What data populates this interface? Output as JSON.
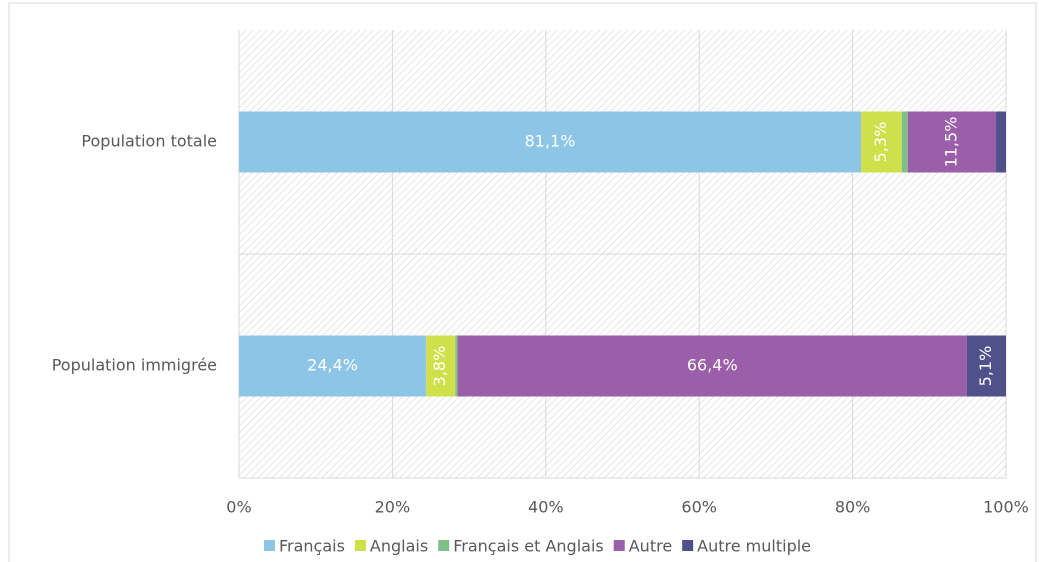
{
  "chart_data": {
    "type": "stacked_barh",
    "categories": [
      "Population totale",
      "Population immigrée"
    ],
    "series": [
      {
        "name": "Français",
        "color": "#8dc5e7",
        "values": [
          81.1,
          24.4
        ],
        "value_labels": [
          "81,1%",
          "24,4%"
        ]
      },
      {
        "name": "Anglais",
        "color": "#cfe04a",
        "values": [
          5.3,
          3.8
        ],
        "value_labels": [
          "5,3%",
          "3,8%"
        ]
      },
      {
        "name": "Français et Anglais",
        "color": "#80bf88",
        "values": [
          0.8,
          0.3
        ],
        "value_labels": [
          null,
          null
        ]
      },
      {
        "name": "Autre",
        "color": "#9b5fa9",
        "values": [
          11.5,
          66.4
        ],
        "value_labels": [
          "11,5%",
          "66,4%"
        ]
      },
      {
        "name": "Autre multiple",
        "color": "#50508a",
        "values": [
          1.3,
          5.1
        ],
        "value_labels": [
          null,
          "5,1%"
        ]
      }
    ],
    "xlim": [
      0,
      100
    ],
    "xticks": [
      {
        "value": 0,
        "label": "0%"
      },
      {
        "value": 20,
        "label": "20%"
      },
      {
        "value": 40,
        "label": "40%"
      },
      {
        "value": 60,
        "label": "60%"
      },
      {
        "value": 80,
        "label": "80%"
      },
      {
        "value": 100,
        "label": "100%"
      }
    ],
    "grid": true,
    "legend": "bottom"
  }
}
